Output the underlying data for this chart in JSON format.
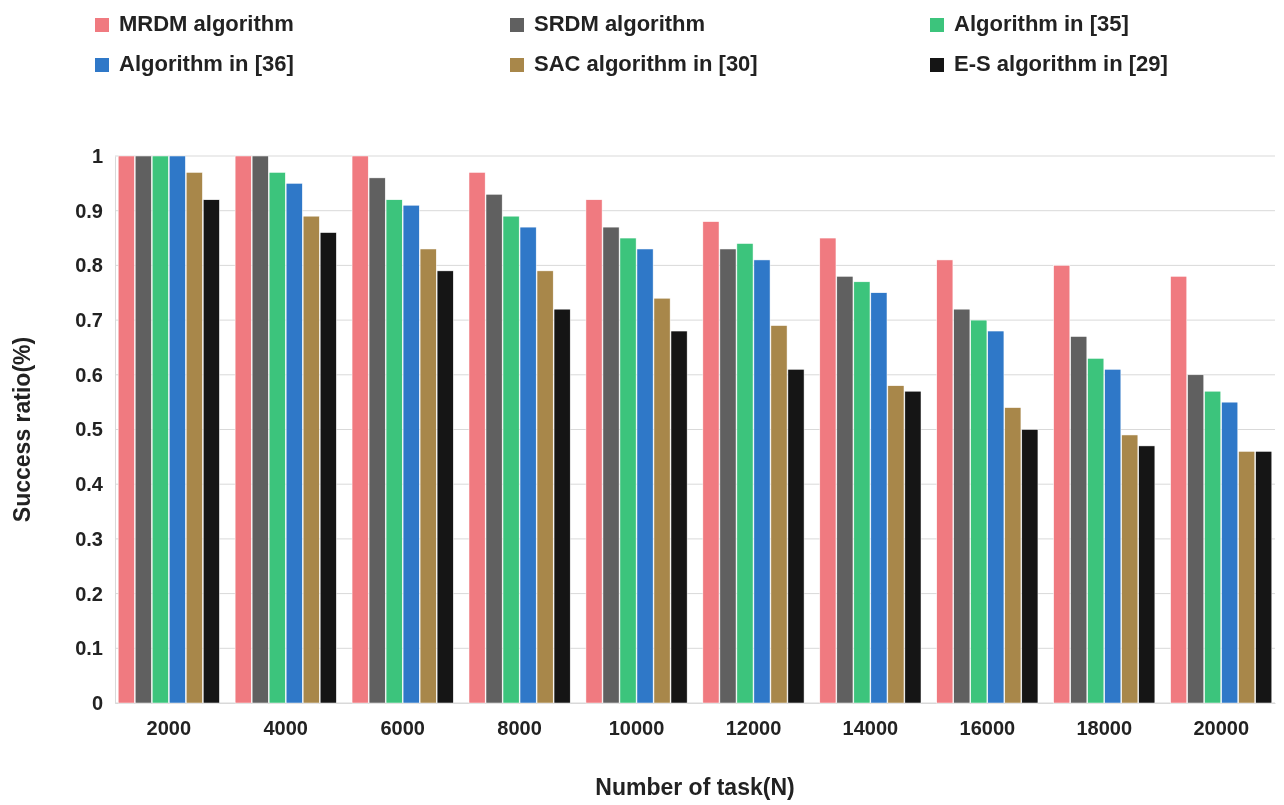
{
  "chart_data": {
    "type": "bar",
    "xlabel": "Number of task(N)",
    "ylabel": "Success ratio(%)",
    "categories": [
      "2000",
      "4000",
      "6000",
      "8000",
      "10000",
      "12000",
      "14000",
      "16000",
      "18000",
      "20000"
    ],
    "series": [
      {
        "name": "MRDM algorithm",
        "color": "#f07a80",
        "values": [
          1.0,
          1.0,
          1.0,
          0.97,
          0.92,
          0.88,
          0.85,
          0.81,
          0.8,
          0.78
        ]
      },
      {
        "name": "SRDM algorithm",
        "color": "#606060",
        "values": [
          1.0,
          1.0,
          0.96,
          0.93,
          0.87,
          0.83,
          0.78,
          0.72,
          0.67,
          0.6
        ]
      },
      {
        "name": "Algorithm in [35]",
        "color": "#3cc47c",
        "values": [
          1.0,
          0.97,
          0.92,
          0.89,
          0.85,
          0.84,
          0.77,
          0.7,
          0.63,
          0.57
        ]
      },
      {
        "name": "Algorithm in [36]",
        "color": "#2f78c8",
        "values": [
          1.0,
          0.95,
          0.91,
          0.87,
          0.83,
          0.81,
          0.75,
          0.68,
          0.61,
          0.55
        ]
      },
      {
        "name": "SAC algorithm in [30]",
        "color": "#a8874a",
        "values": [
          0.97,
          0.89,
          0.83,
          0.79,
          0.74,
          0.69,
          0.58,
          0.54,
          0.49,
          0.46
        ]
      },
      {
        "name": "E-S algorithm in [29]",
        "color": "#151515",
        "values": [
          0.92,
          0.86,
          0.79,
          0.72,
          0.68,
          0.61,
          0.57,
          0.5,
          0.47,
          0.46
        ]
      }
    ],
    "ylim": [
      0,
      1
    ],
    "yticks": [
      0,
      0.1,
      0.2,
      0.3,
      0.4,
      0.5,
      0.6,
      0.7,
      0.8,
      0.9,
      1
    ],
    "grid": "y",
    "legend": "top"
  }
}
